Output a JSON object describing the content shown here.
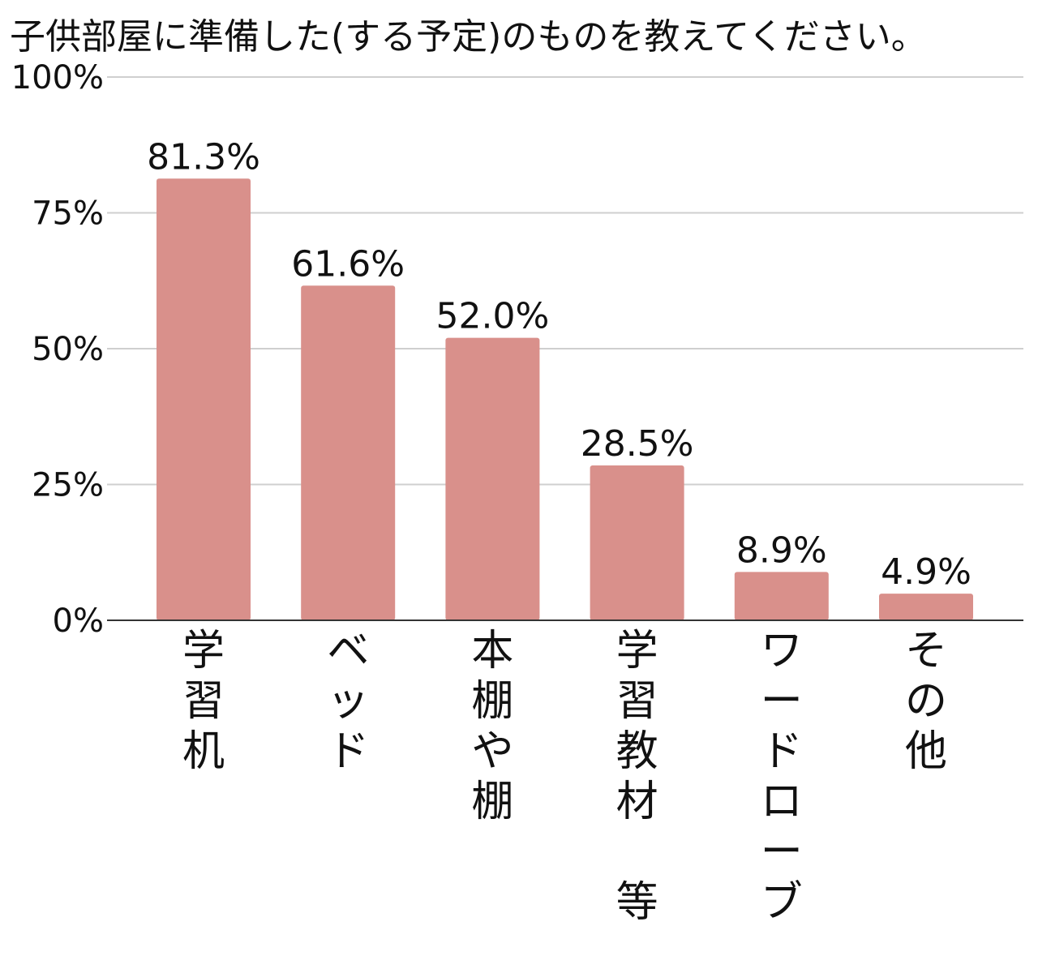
{
  "chart_data": {
    "type": "bar",
    "title": "子供部屋に準備した(する予定)のものを教えてください。",
    "categories": [
      "学習机",
      "ベッド",
      "本棚や棚",
      "学習教材 等",
      "ワードローブ",
      "その他"
    ],
    "values": [
      81.3,
      61.6,
      52.0,
      28.5,
      8.9,
      4.9
    ],
    "data_labels": [
      "81.3%",
      "61.6%",
      "52.0%",
      "28.5%",
      "8.9%",
      "4.9%"
    ],
    "y_ticks": [
      0,
      25,
      50,
      75,
      100
    ],
    "y_tick_labels": [
      "0%",
      "25%",
      "50%",
      "75%",
      "100%"
    ],
    "ylim": [
      0,
      100
    ],
    "grid": true,
    "legend": "none",
    "bar_color": "#d9908b",
    "xlabel": "",
    "ylabel": ""
  }
}
